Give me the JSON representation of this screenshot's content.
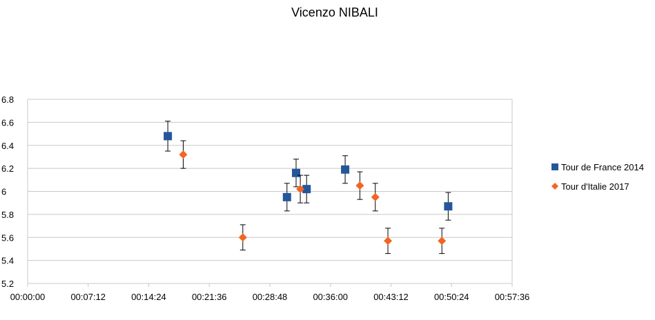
{
  "chart_data": {
    "type": "scatter",
    "title": "Vicenzo NIBALI",
    "xlabel": "",
    "ylabel": "",
    "xlim": [
      "00:00:00",
      "00:57:36"
    ],
    "ylim": [
      5.2,
      6.8
    ],
    "x_ticks": [
      "00:00:00",
      "00:07:12",
      "00:14:24",
      "00:21:36",
      "00:28:48",
      "00:36:00",
      "00:43:12",
      "00:50:24",
      "00:57:36"
    ],
    "y_ticks": [
      "5.2",
      "5.4",
      "5.6",
      "5.8",
      "6",
      "6.2",
      "6.4",
      "6.6",
      "6.8"
    ],
    "grid": "horizontal",
    "legend_position": "right",
    "error_bars": true,
    "series": [
      {
        "name": "Tour de France 2014",
        "marker": "square",
        "color": "#24579A",
        "points": [
          {
            "x": "00:16:40",
            "y": 6.48,
            "err": 0.13
          },
          {
            "x": "00:30:50",
            "y": 5.95,
            "err": 0.12
          },
          {
            "x": "00:31:55",
            "y": 6.16,
            "err": 0.12
          },
          {
            "x": "00:33:10",
            "y": 6.02,
            "err": 0.12
          },
          {
            "x": "00:37:45",
            "y": 6.19,
            "err": 0.12
          },
          {
            "x": "00:50:00",
            "y": 5.87,
            "err": 0.12
          }
        ]
      },
      {
        "name": "Tour d'Italie 2017",
        "marker": "diamond",
        "color": "#F26522",
        "points": [
          {
            "x": "00:18:30",
            "y": 6.32,
            "err": 0.12
          },
          {
            "x": "00:25:35",
            "y": 5.6,
            "err": 0.11
          },
          {
            "x": "00:32:25",
            "y": 6.02,
            "err": 0.12
          },
          {
            "x": "00:39:30",
            "y": 6.05,
            "err": 0.12
          },
          {
            "x": "00:41:20",
            "y": 5.95,
            "err": 0.12
          },
          {
            "x": "00:42:50",
            "y": 5.57,
            "err": 0.11
          },
          {
            "x": "00:49:15",
            "y": 5.57,
            "err": 0.11
          }
        ]
      }
    ]
  }
}
